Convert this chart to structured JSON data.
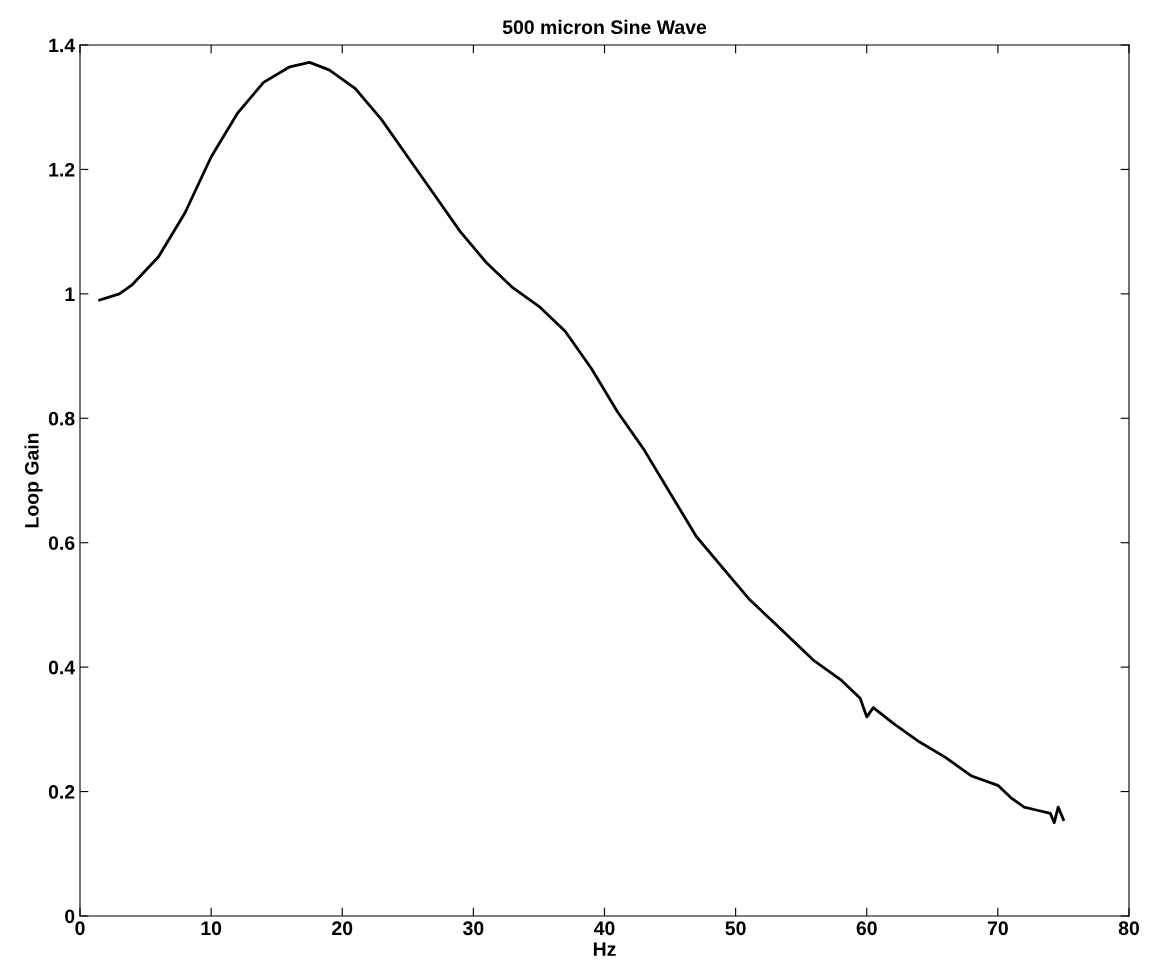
{
  "chart_data": {
    "type": "line",
    "title": "500 micron Sine Wave",
    "xlabel": "Hz",
    "ylabel": "Loop Gain",
    "series": [
      {
        "color": "#000000",
        "x": [
          1.5,
          3,
          4,
          6,
          8,
          10,
          12,
          14,
          16,
          17.5,
          19,
          21,
          23,
          25,
          27,
          29,
          31,
          33,
          35,
          37,
          39,
          41,
          43,
          45,
          47,
          49,
          51,
          53,
          55,
          56,
          58,
          59.5,
          60,
          60.5,
          62,
          64,
          66,
          68,
          70,
          71,
          72,
          73,
          74,
          74.3,
          74.6,
          75
        ],
        "values": [
          0.99,
          1.0,
          1.015,
          1.06,
          1.13,
          1.22,
          1.29,
          1.34,
          1.365,
          1.372,
          1.36,
          1.33,
          1.28,
          1.22,
          1.16,
          1.1,
          1.05,
          1.01,
          0.98,
          0.94,
          0.88,
          0.81,
          0.75,
          0.68,
          0.61,
          0.56,
          0.51,
          0.47,
          0.43,
          0.41,
          0.38,
          0.35,
          0.32,
          0.335,
          0.31,
          0.28,
          0.255,
          0.225,
          0.21,
          0.19,
          0.175,
          0.17,
          0.165,
          0.15,
          0.175,
          0.155
        ]
      }
    ],
    "xlim": [
      0,
      80
    ],
    "xticks": [
      0,
      10,
      20,
      30,
      40,
      50,
      60,
      70,
      80
    ],
    "ylim": [
      0,
      1.4
    ],
    "yticks": [
      0,
      0.2,
      0.4,
      0.6,
      0.8,
      1,
      1.2,
      1.4
    ],
    "grid": false,
    "legend": false,
    "marker": "none",
    "line_style": "solid"
  }
}
